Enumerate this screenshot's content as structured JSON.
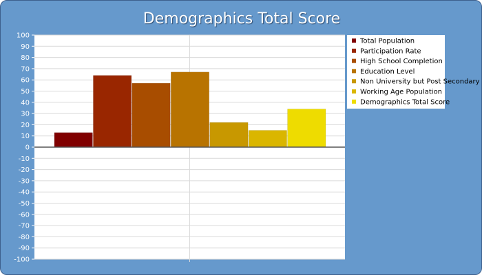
{
  "chart_data": {
    "type": "bar",
    "title": "Demographics Total Score",
    "xlabel": "",
    "ylabel": "",
    "ylim": [
      -100,
      100
    ],
    "y_ticks": [
      "100",
      "90",
      "80",
      "70",
      "60",
      "50",
      "40",
      "30",
      "20",
      "10",
      "0",
      "-10",
      "-20",
      "-30",
      "-40",
      "-50",
      "-60",
      "-70",
      "-80",
      "-90",
      "-100"
    ],
    "grid": true,
    "legend_position": "right",
    "categories": [
      ""
    ],
    "series": [
      {
        "name": "Total Population",
        "values": [
          13
        ],
        "color": "#800000"
      },
      {
        "name": "Participation Rate",
        "values": [
          64
        ],
        "color": "#992600"
      },
      {
        "name": "High School Completion",
        "values": [
          57
        ],
        "color": "#a84d00"
      },
      {
        "name": "Education Level",
        "values": [
          67
        ],
        "color": "#b87300"
      },
      {
        "name": "Non University but Post Secondary",
        "values": [
          22
        ],
        "color": "#c89800"
      },
      {
        "name": "Working Age Population",
        "values": [
          15
        ],
        "color": "#dab600"
      },
      {
        "name": "Demographics Total Score",
        "values": [
          34
        ],
        "color": "#eedc00"
      }
    ]
  },
  "colors": {
    "frame_background": "#6699cc",
    "plot_background": "#ffffff",
    "legend_background": "#ffffff"
  }
}
